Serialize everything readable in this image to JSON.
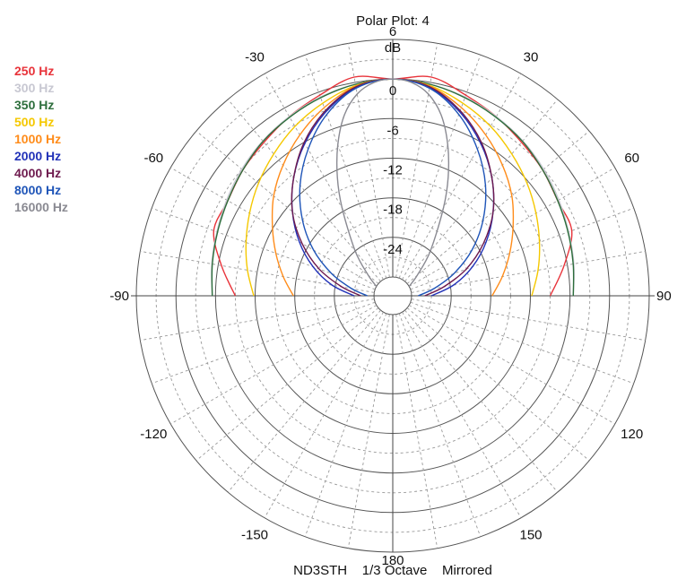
{
  "chart_data": {
    "type": "polar",
    "title": "Polar Plot: 4",
    "footer": "ND3STH    1/3 Octave    Mirrored",
    "radial_unit": "dB",
    "radial_ticks": [
      6,
      0,
      -6,
      -12,
      -18,
      -24
    ],
    "radial_range": [
      -30,
      6
    ],
    "angle_ticks": [
      0,
      30,
      60,
      90,
      120,
      150,
      180,
      -150,
      -120,
      -90,
      -60,
      -30
    ],
    "angle_labels": [
      "",
      "30",
      "60",
      "90",
      "120",
      "150",
      "180",
      "-150",
      "-120",
      "-90",
      "-60",
      "-30"
    ],
    "mirrored": true,
    "series": [
      {
        "name": "250 Hz",
        "color": "#e8333a",
        "angles": [
          0,
          10,
          20,
          30,
          40,
          50,
          60,
          70,
          80,
          90
        ],
        "values": [
          0,
          0.8,
          -0.5,
          -1.5,
          -2.5,
          -3.2,
          -4.0,
          -4.0,
          -6.5,
          -9.0
        ]
      },
      {
        "name": "300 Hz",
        "color": "#c8c8d2",
        "angles": [
          0,
          10,
          20,
          30,
          40,
          50,
          60,
          70,
          80,
          90
        ],
        "values": [
          0,
          -0.3,
          -0.8,
          -1.5,
          -2.2,
          -3.0,
          -3.8,
          -4.5,
          -5.0,
          -5.5
        ]
      },
      {
        "name": "350 Hz",
        "color": "#2d6e3c",
        "angles": [
          0,
          10,
          20,
          30,
          40,
          50,
          60,
          70,
          80,
          90
        ],
        "values": [
          0,
          -0.3,
          -0.9,
          -1.6,
          -2.3,
          -3.2,
          -4.0,
          -4.6,
          -5.1,
          -5.5
        ]
      },
      {
        "name": "500 Hz",
        "color": "#f5c800",
        "angles": [
          0,
          10,
          20,
          30,
          40,
          50,
          60,
          70,
          80,
          90
        ],
        "values": [
          0,
          -0.5,
          -1.8,
          -3.2,
          -4.8,
          -6.3,
          -7.8,
          -9.2,
          -10.5,
          -11.8
        ]
      },
      {
        "name": "1000 Hz",
        "color": "#ff8c1a",
        "angles": [
          0,
          10,
          20,
          30,
          40,
          50,
          60,
          70,
          80,
          90
        ],
        "values": [
          0,
          -0.6,
          -2.5,
          -4.7,
          -7.0,
          -9.3,
          -11.8,
          -14.0,
          -16.0,
          -17.8
        ]
      },
      {
        "name": "2000 Hz",
        "color": "#2232b8",
        "angles": [
          0,
          10,
          20,
          30,
          40,
          50,
          60,
          70,
          80,
          90
        ],
        "values": [
          0,
          -0.8,
          -3.2,
          -6.2,
          -9.5,
          -13.0,
          -16.5,
          -20.0,
          -23.5,
          -27.0
        ]
      },
      {
        "name": "4000 Hz",
        "color": "#6e1a4e",
        "angles": [
          0,
          10,
          20,
          30,
          40,
          50,
          60,
          70,
          80,
          90
        ],
        "values": [
          0,
          -0.7,
          -3.0,
          -6.0,
          -9.5,
          -13.0,
          -17.0,
          -21.0,
          -25.0,
          -28.0
        ]
      },
      {
        "name": "8000 Hz",
        "color": "#1f55b8",
        "angles": [
          0,
          10,
          20,
          30,
          40,
          50,
          60,
          70,
          80,
          90
        ],
        "values": [
          0,
          -0.9,
          -3.6,
          -7.2,
          -11.0,
          -15.0,
          -19.0,
          -23.0,
          -26.5,
          -29.0
        ]
      },
      {
        "name": "16000 Hz",
        "color": "#8a8a92",
        "angles": [
          0,
          5,
          10,
          15,
          20,
          25,
          30,
          40,
          50,
          60
        ],
        "values": [
          0,
          -0.4,
          -1.8,
          -4.5,
          -8.5,
          -13.0,
          -17.5,
          -24.0,
          -28.0,
          -30.0
        ]
      }
    ]
  }
}
